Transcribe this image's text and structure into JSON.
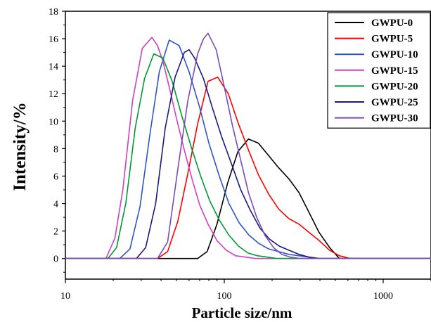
{
  "chart_data": {
    "type": "line",
    "title": "",
    "xlabel": "Particle size/nm",
    "ylabel": "Intensity/%",
    "xscale": "log",
    "xlim": [
      10,
      2000
    ],
    "ylim": [
      -1.5,
      18
    ],
    "xticks": [
      10,
      100,
      1000
    ],
    "xtick_labels": [
      "10",
      "100",
      "1000"
    ],
    "yticks": [
      0,
      2,
      4,
      6,
      8,
      10,
      12,
      14,
      16,
      18
    ],
    "ytick_labels": [
      "0",
      "2",
      "4",
      "6",
      "8",
      "10",
      "12",
      "14",
      "16",
      "18"
    ],
    "grid": false,
    "legend_position": "top-right",
    "series": [
      {
        "name": "GWPU-0",
        "color": "#000000",
        "x": [
          10,
          68,
          78,
          90,
          105,
          122,
          142,
          164,
          190,
          220,
          255,
          295,
          340,
          395,
          460,
          530,
          2000
        ],
        "y": [
          0,
          0,
          0.5,
          2.5,
          5.5,
          7.8,
          8.7,
          8.4,
          7.5,
          6.6,
          5.8,
          4.8,
          3.4,
          1.9,
          0.8,
          0,
          0
        ]
      },
      {
        "name": "GWPU-5",
        "color": "#ff0000",
        "x": [
          10,
          38,
          44,
          51,
          59,
          68,
          79,
          91,
          106,
          122,
          142,
          164,
          190,
          220,
          255,
          295,
          342,
          396,
          460,
          530,
          620,
          2000
        ],
        "y": [
          0,
          0,
          0.5,
          2.7,
          6.2,
          9.8,
          12.9,
          13.2,
          12.0,
          9.9,
          7.9,
          6.1,
          4.7,
          3.6,
          2.9,
          2.5,
          1.9,
          1.3,
          0.6,
          0.2,
          0,
          0
        ]
      },
      {
        "name": "GWPU-10",
        "color": "#2e55c6",
        "x": [
          10,
          22,
          25.5,
          29.5,
          34,
          39,
          45,
          52,
          60,
          70,
          80,
          93,
          107,
          124,
          143,
          165,
          190,
          220,
          255,
          295,
          342,
          400,
          460,
          2000
        ],
        "y": [
          0,
          0,
          0.7,
          3.8,
          9.0,
          13.6,
          15.9,
          15.5,
          13.6,
          11.0,
          8.4,
          6.0,
          4.0,
          2.6,
          1.7,
          1.1,
          0.7,
          0.5,
          0.3,
          0.2,
          0.1,
          0,
          0,
          0
        ]
      },
      {
        "name": "GWPU-15",
        "color": "#d040c0",
        "x": [
          10,
          18,
          20.5,
          23,
          26.5,
          30.5,
          35,
          38,
          41,
          45,
          50,
          56,
          63,
          70,
          79,
          90,
          103,
          118,
          136,
          157,
          180,
          2000
        ],
        "y": [
          0,
          0,
          1.5,
          5.0,
          11.5,
          15.3,
          16.1,
          15.5,
          14.4,
          12.5,
          10.2,
          7.9,
          5.7,
          3.9,
          2.5,
          1.3,
          0.6,
          0.2,
          0.1,
          0,
          0,
          0
        ]
      },
      {
        "name": "GWPU-20",
        "color": "#009933",
        "x": [
          10,
          18.5,
          21,
          24,
          27.5,
          31.5,
          36,
          41,
          47,
          54,
          62,
          71,
          81,
          93,
          107,
          123,
          141,
          162,
          187,
          215,
          250,
          2000
        ],
        "y": [
          0,
          0,
          0.8,
          4.0,
          9.5,
          13.1,
          14.9,
          14.6,
          12.9,
          10.4,
          8.1,
          6.0,
          4.2,
          2.8,
          1.7,
          0.9,
          0.4,
          0.2,
          0.1,
          0,
          0,
          0
        ]
      },
      {
        "name": "GWPU-25",
        "color": "#1a1a7a",
        "x": [
          10,
          28,
          32,
          37,
          42.5,
          49,
          56,
          60,
          65,
          74,
          84,
          96,
          111,
          127,
          146,
          168,
          193,
          222,
          256,
          295,
          340,
          390,
          450,
          2000
        ],
        "y": [
          0,
          0,
          0.8,
          4.0,
          9.5,
          13.2,
          15.0,
          15.2,
          14.6,
          13.1,
          11.0,
          8.9,
          6.9,
          5.0,
          3.5,
          2.2,
          1.4,
          0.9,
          0.6,
          0.3,
          0.1,
          0,
          0,
          0
        ]
      },
      {
        "name": "GWPU-30",
        "color": "#7a4ab8",
        "x": [
          10,
          38,
          44,
          51,
          59,
          68,
          74,
          79,
          89,
          100,
          112,
          126,
          142,
          160,
          180,
          204,
          230,
          260,
          300,
          345,
          2000
        ],
        "y": [
          0,
          0,
          1.2,
          6.5,
          11.5,
          14.9,
          16.0,
          16.4,
          15.2,
          12.5,
          9.8,
          7.3,
          4.8,
          3.0,
          1.7,
          0.8,
          0.3,
          0.1,
          0,
          0,
          0
        ]
      }
    ]
  }
}
